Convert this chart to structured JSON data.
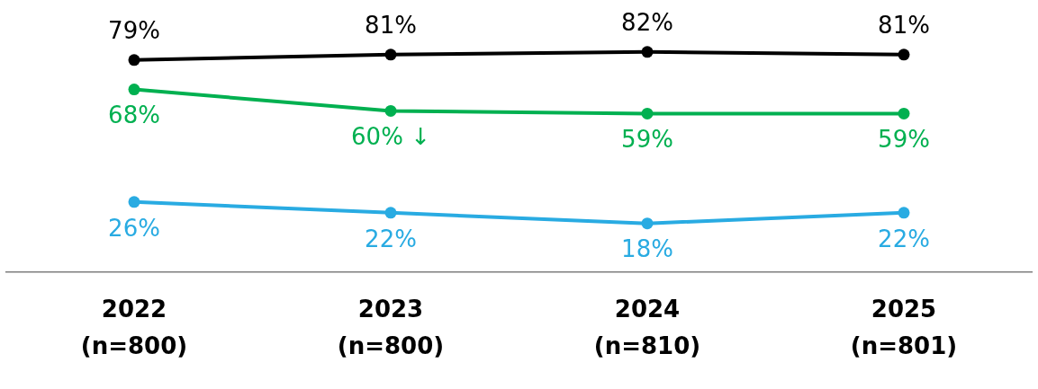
{
  "chart_data": {
    "type": "line",
    "categories": [
      "2022\n(n=800)",
      "2023\n(n=800)",
      "2024\n(n=810)",
      "2025\n(n=801)"
    ],
    "series": [
      {
        "color": "#000000",
        "values": [
          79,
          81,
          82,
          81
        ],
        "value_labels": [
          "79%",
          "81%",
          "82%",
          "81%"
        ]
      },
      {
        "color": "#00b050",
        "values": [
          68,
          60,
          59,
          59
        ],
        "value_labels": [
          "68%",
          "60% ↓",
          "59%",
          "59%"
        ]
      },
      {
        "color": "#29abe2",
        "values": [
          26,
          22,
          18,
          22
        ],
        "value_labels": [
          "26%",
          "22%",
          "18%",
          "22%"
        ]
      }
    ],
    "tick_labels": "x",
    "grid": false,
    "legend": false,
    "marker": "circle",
    "line_style": "solid"
  }
}
